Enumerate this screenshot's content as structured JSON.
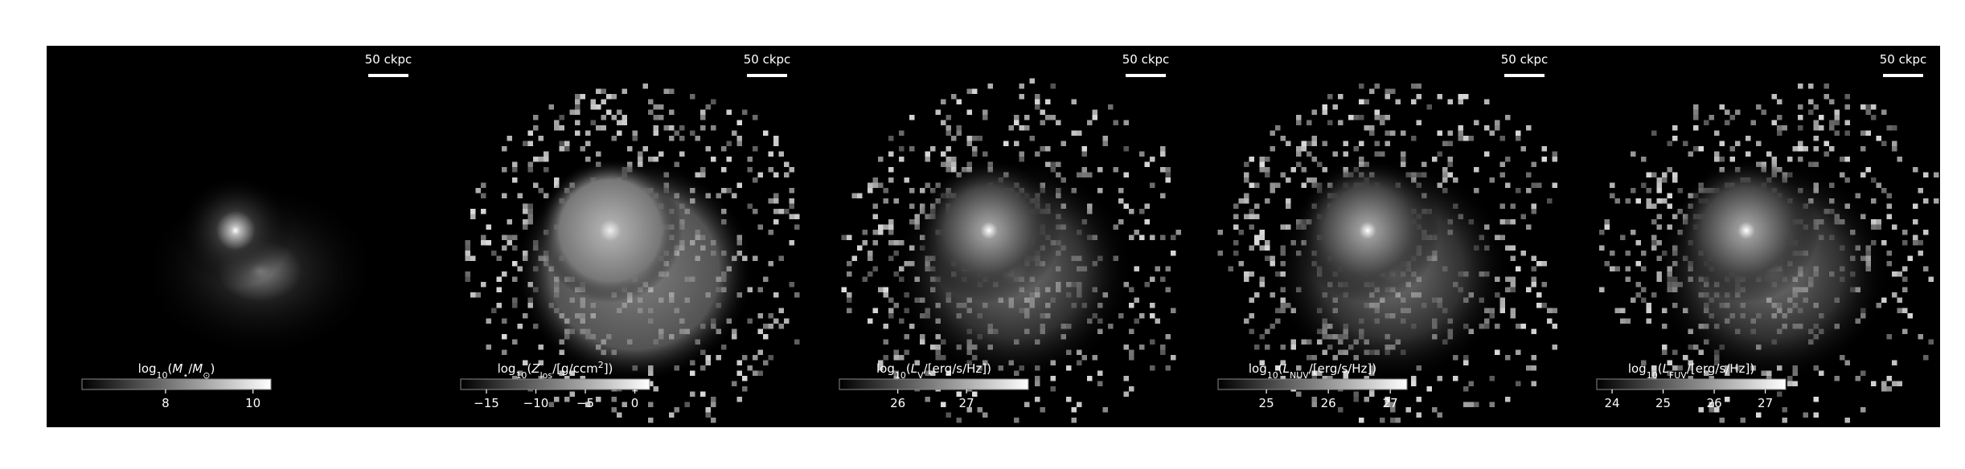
{
  "panels": [
    {
      "scale_bar": "50 ckpc",
      "colorbar": {
        "label": [
          {
            "text": "log"
          },
          {
            "text": "10",
            "sub": true
          },
          {
            "text": "("
          },
          {
            "text": "M",
            "italic": true
          },
          {
            "text": "⋆",
            "sub": true
          },
          {
            "text": "/"
          },
          {
            "text": "M",
            "italic": true
          },
          {
            "text": "⊙",
            "sub": true
          },
          {
            "text": ")"
          }
        ],
        "lim": [
          6.09,
          10.41
        ],
        "ticks": [
          8,
          10
        ]
      }
    },
    {
      "scale_bar": "50 ckpc",
      "colorbar": {
        "label": [
          {
            "text": "log"
          },
          {
            "text": "10",
            "sub": true
          },
          {
            "text": "("
          },
          {
            "text": "Z",
            "italic": true
          },
          {
            "text": "los",
            "sub": true
          },
          {
            "text": "/[g/ccm"
          },
          {
            "text": "2",
            "sup": true
          },
          {
            "text": "])"
          }
        ],
        "lim": [
          -17.6,
          1.5
        ],
        "ticks": [
          {
            "value": -15,
            "label": "−15"
          },
          {
            "value": -10,
            "label": "−10"
          },
          {
            "value": -5,
            "label": "−5"
          },
          0
        ]
      }
    },
    {
      "scale_bar": "50 ckpc",
      "colorbar": {
        "label": [
          {
            "text": "log"
          },
          {
            "text": "10",
            "sub": true
          },
          {
            "text": "("
          },
          {
            "text": "L",
            "italic": true
          },
          {
            "text": "V",
            "sub": true
          },
          {
            "text": "/[erg/s/Hz])"
          }
        ],
        "lim": [
          25.15,
          27.9
        ],
        "ticks": [
          26,
          27
        ]
      }
    },
    {
      "scale_bar": "50 ckpc",
      "colorbar": {
        "label": [
          {
            "text": "log"
          },
          {
            "text": "10",
            "sub": true
          },
          {
            "text": "("
          },
          {
            "text": "L",
            "italic": true
          },
          {
            "text": "NUV",
            "sub": true
          },
          {
            "text": "/[erg/s/Hz])"
          }
        ],
        "lim": [
          24.22,
          27.27
        ],
        "ticks": [
          25,
          26,
          27
        ]
      }
    },
    {
      "scale_bar": "50 ckpc",
      "colorbar": {
        "label": [
          {
            "text": "log"
          },
          {
            "text": "10",
            "sub": true
          },
          {
            "text": "("
          },
          {
            "text": "L",
            "italic": true
          },
          {
            "text": "FUV",
            "sub": true
          },
          {
            "text": "/[erg/s/Hz])"
          }
        ],
        "lim": [
          23.7,
          27.4
        ],
        "ticks": [
          24,
          25,
          26,
          27
        ]
      }
    }
  ]
}
